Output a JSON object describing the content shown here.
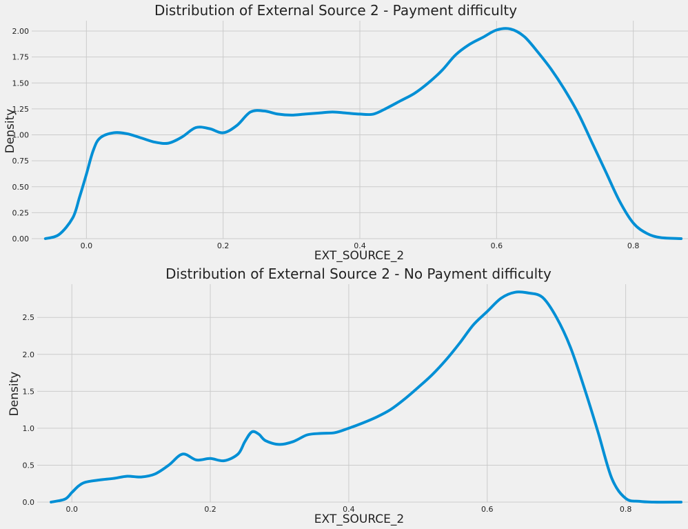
{
  "chart_data": [
    {
      "type": "line",
      "title": "Distribution of External Source 2 - Payment difficulty",
      "xlabel": "EXT_SOURCE_2",
      "ylabel": "Density",
      "xlim": [
        -0.08,
        0.88
      ],
      "ylim": [
        0,
        2.1
      ],
      "xticks": [
        "0.0",
        "0.2",
        "0.4",
        "0.6",
        "0.8"
      ],
      "xtick_values": [
        0.0,
        0.2,
        0.4,
        0.6,
        0.8
      ],
      "yticks": [
        "0.00",
        "0.25",
        "0.50",
        "0.75",
        "1.00",
        "1.25",
        "1.50",
        "1.75",
        "2.00"
      ],
      "ytick_values": [
        0.0,
        0.25,
        0.5,
        0.75,
        1.0,
        1.25,
        1.5,
        1.75,
        2.0
      ],
      "grid": true,
      "series": [
        {
          "color": "#008fd5",
          "x": [
            -0.06,
            -0.04,
            -0.02,
            -0.01,
            0.0,
            0.01,
            0.02,
            0.04,
            0.06,
            0.08,
            0.1,
            0.12,
            0.14,
            0.16,
            0.18,
            0.2,
            0.22,
            0.24,
            0.26,
            0.28,
            0.3,
            0.32,
            0.34,
            0.36,
            0.38,
            0.4,
            0.42,
            0.44,
            0.46,
            0.48,
            0.5,
            0.52,
            0.54,
            0.56,
            0.58,
            0.6,
            0.62,
            0.64,
            0.66,
            0.68,
            0.7,
            0.72,
            0.74,
            0.76,
            0.78,
            0.8,
            0.82,
            0.84,
            0.87
          ],
          "y": [
            0.0,
            0.04,
            0.2,
            0.4,
            0.62,
            0.85,
            0.97,
            1.02,
            1.01,
            0.97,
            0.93,
            0.92,
            0.98,
            1.07,
            1.06,
            1.02,
            1.09,
            1.22,
            1.23,
            1.2,
            1.19,
            1.2,
            1.21,
            1.22,
            1.21,
            1.2,
            1.2,
            1.26,
            1.33,
            1.4,
            1.5,
            1.62,
            1.77,
            1.87,
            1.94,
            2.01,
            2.02,
            1.95,
            1.8,
            1.63,
            1.43,
            1.2,
            0.92,
            0.64,
            0.36,
            0.15,
            0.05,
            0.01,
            0.0
          ]
        }
      ]
    },
    {
      "type": "line",
      "title": "Distribution of External Source 2 - No Payment difficulty",
      "xlabel": "EXT_SOURCE_2",
      "ylabel": "Density",
      "xlim": [
        -0.05,
        0.89
      ],
      "ylim": [
        0,
        2.95
      ],
      "xticks": [
        "0.0",
        "0.2",
        "0.4",
        "0.6",
        "0.8"
      ],
      "xtick_values": [
        0.0,
        0.2,
        0.4,
        0.6,
        0.8
      ],
      "yticks": [
        "0.0",
        "0.5",
        "1.0",
        "1.5",
        "2.0",
        "2.5"
      ],
      "ytick_values": [
        0.0,
        0.5,
        1.0,
        1.5,
        2.0,
        2.5
      ],
      "grid": true,
      "series": [
        {
          "color": "#008fd5",
          "x": [
            -0.03,
            -0.01,
            0.0,
            0.01,
            0.02,
            0.04,
            0.06,
            0.08,
            0.1,
            0.12,
            0.14,
            0.16,
            0.18,
            0.2,
            0.22,
            0.24,
            0.25,
            0.26,
            0.27,
            0.28,
            0.3,
            0.32,
            0.34,
            0.36,
            0.38,
            0.4,
            0.42,
            0.44,
            0.46,
            0.48,
            0.5,
            0.52,
            0.54,
            0.56,
            0.58,
            0.6,
            0.62,
            0.64,
            0.66,
            0.68,
            0.7,
            0.72,
            0.74,
            0.76,
            0.78,
            0.8,
            0.82,
            0.84,
            0.88
          ],
          "y": [
            0.0,
            0.04,
            0.13,
            0.22,
            0.27,
            0.3,
            0.32,
            0.35,
            0.34,
            0.38,
            0.5,
            0.65,
            0.57,
            0.59,
            0.56,
            0.65,
            0.82,
            0.95,
            0.92,
            0.83,
            0.78,
            0.82,
            0.91,
            0.93,
            0.94,
            1.0,
            1.07,
            1.15,
            1.25,
            1.39,
            1.55,
            1.72,
            1.92,
            2.15,
            2.4,
            2.58,
            2.76,
            2.84,
            2.83,
            2.77,
            2.5,
            2.1,
            1.55,
            0.95,
            0.32,
            0.05,
            0.01,
            0.0,
            0.0
          ]
        }
      ]
    }
  ]
}
